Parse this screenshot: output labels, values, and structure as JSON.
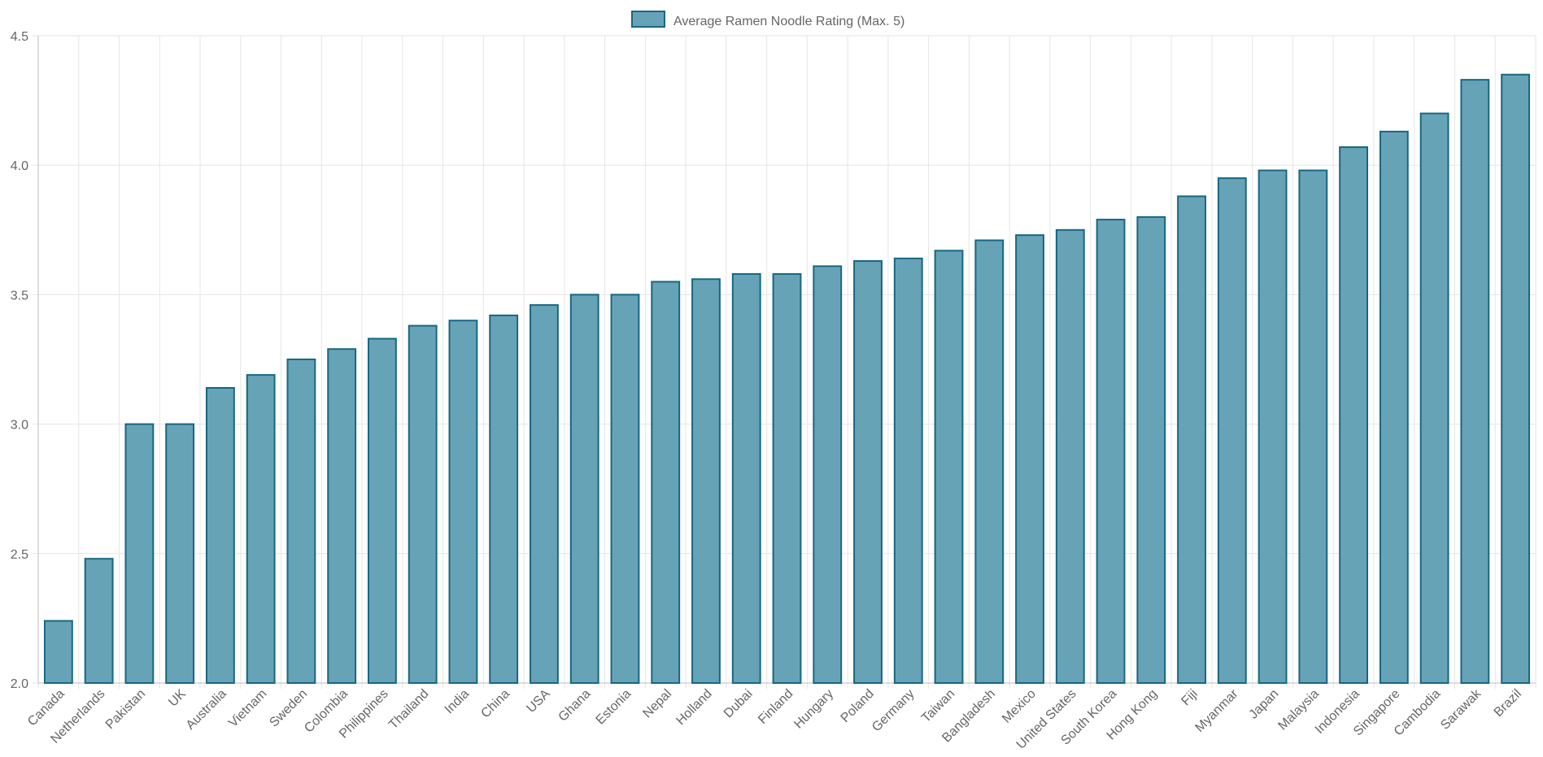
{
  "chart_data": {
    "type": "bar",
    "legend": {
      "label": "Average Ramen Noodle Rating (Max. 5)",
      "position": "top-center"
    },
    "categories": [
      "Canada",
      "Netherlands",
      "Pakistan",
      "UK",
      "Australia",
      "Vietnam",
      "Sweden",
      "Colombia",
      "Philippines",
      "Thailand",
      "India",
      "China",
      "USA",
      "Ghana",
      "Estonia",
      "Nepal",
      "Holland",
      "Dubai",
      "Finland",
      "Hungary",
      "Poland",
      "Germany",
      "Taiwan",
      "Bangladesh",
      "Mexico",
      "United States",
      "South Korea",
      "Hong Kong",
      "Fiji",
      "Myanmar",
      "Japan",
      "Malaysia",
      "Indonesia",
      "Singapore",
      "Cambodia",
      "Sarawak",
      "Brazil"
    ],
    "series": [
      {
        "name": "Average Ramen Noodle Rating (Max. 5)",
        "values": [
          2.24,
          2.48,
          3.0,
          3.0,
          3.14,
          3.19,
          3.25,
          3.29,
          3.33,
          3.38,
          3.4,
          3.42,
          3.46,
          3.5,
          3.5,
          3.55,
          3.56,
          3.58,
          3.58,
          3.61,
          3.63,
          3.64,
          3.67,
          3.71,
          3.73,
          3.75,
          3.79,
          3.8,
          3.88,
          3.95,
          3.98,
          3.98,
          4.07,
          4.13,
          4.2,
          4.33,
          4.35
        ]
      }
    ],
    "ylim": [
      2.0,
      4.5
    ],
    "yticks": [
      "2.0",
      "2.5",
      "3.0",
      "3.5",
      "4.0",
      "4.5"
    ],
    "grid": true,
    "colors": {
      "bar_fill": "#67a3b7",
      "bar_stroke": "#176783"
    }
  }
}
